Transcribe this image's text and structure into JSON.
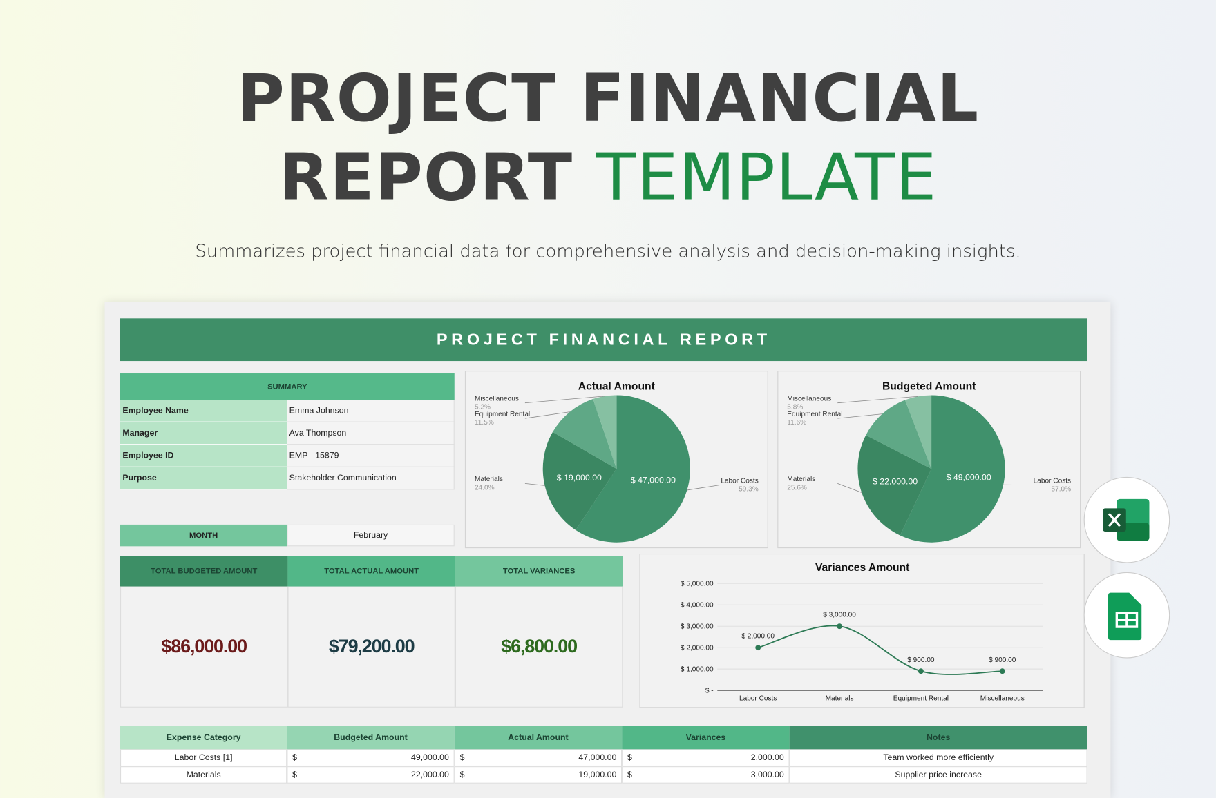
{
  "header": {
    "title_line1": "PROJECT FINANCIAL",
    "title_line2": "REPORT",
    "title_accent": "TEMPLATE",
    "subtitle": "Summarizes project financial data for comprehensive analysis and decision-making insights."
  },
  "report": {
    "title": "PROJECT FINANCIAL REPORT"
  },
  "summary": {
    "header": "SUMMARY",
    "rows": [
      [
        "Employee Name",
        "Emma Johnson"
      ],
      [
        "Manager",
        "Ava Thompson"
      ],
      [
        "Employee ID",
        "EMP - 15879"
      ],
      [
        "Purpose",
        "Stakeholder Communication"
      ]
    ]
  },
  "month": {
    "label": "MONTH",
    "value": "February"
  },
  "totals": {
    "headers": [
      "TOTAL BUDGETED AMOUNT",
      "TOTAL ACTUAL AMOUNT",
      "TOTAL VARIANCES"
    ],
    "values": [
      "$86,000.00",
      "$79,200.00",
      "$6,800.00"
    ]
  },
  "actual_chart": {
    "type": "pie",
    "title": "Actual Amount",
    "categories": [
      "Labor Costs",
      "Materials",
      "Equipment Rental",
      "Miscellaneous"
    ],
    "values": [
      47000,
      19000,
      9100,
      4100
    ],
    "value_labels": [
      "$ 47,000.00",
      "$ 19,000.00",
      null,
      null
    ],
    "percent_labels": [
      "59.3%",
      "24.0%",
      "11.5%",
      "5.2%"
    ],
    "colors": [
      "#40916c",
      "#3b8762",
      "#5fa886",
      "#86c0a2"
    ]
  },
  "budgeted_chart": {
    "type": "pie",
    "title": "Budgeted Amount",
    "categories": [
      "Labor Costs",
      "Materials",
      "Equipment Rental",
      "Miscellaneous"
    ],
    "values": [
      49000,
      22000,
      10000,
      5000
    ],
    "value_labels": [
      "$ 49,000.00",
      "$ 22,000.00",
      null,
      null
    ],
    "percent_labels": [
      "57.0%",
      "25.6%",
      "11.6%",
      "5.8%"
    ],
    "colors": [
      "#40916c",
      "#3b8762",
      "#5fa886",
      "#86c0a2"
    ]
  },
  "variance_chart": {
    "type": "line",
    "title": "Variances Amount",
    "categories": [
      "Labor Costs",
      "Materials",
      "Equipment Rental",
      "Miscellaneous"
    ],
    "values": [
      2000,
      3000,
      900,
      900
    ],
    "value_labels": [
      "$ 2,000.00",
      "$ 3,000.00",
      "$ 900.00",
      "$ 900.00"
    ],
    "color": "#2d7a55",
    "ylim": [
      0,
      5000
    ],
    "yticks": [
      {
        "value": 0,
        "label": "$ -"
      },
      {
        "value": 1000,
        "label": "$ 1,000.00"
      },
      {
        "value": 2000,
        "label": "$ 2,000.00"
      },
      {
        "value": 3000,
        "label": "$ 3,000.00"
      },
      {
        "value": 4000,
        "label": "$ 4,000.00"
      },
      {
        "value": 5000,
        "label": "$ 5,000.00"
      }
    ],
    "grid": true
  },
  "table": {
    "headers": [
      "Expense Category",
      "Budgeted Amount",
      "Actual Amount",
      "Variances",
      "Notes"
    ],
    "rows": [
      [
        "Labor Costs [1]",
        "$",
        "49,000.00",
        "$",
        "47,000.00",
        "$",
        "2,000.00",
        "Team worked more efficiently"
      ],
      [
        "Materials",
        "$",
        "22,000.00",
        "$",
        "19,000.00",
        "$",
        "3,000.00",
        "Supplier price increase"
      ]
    ]
  }
}
